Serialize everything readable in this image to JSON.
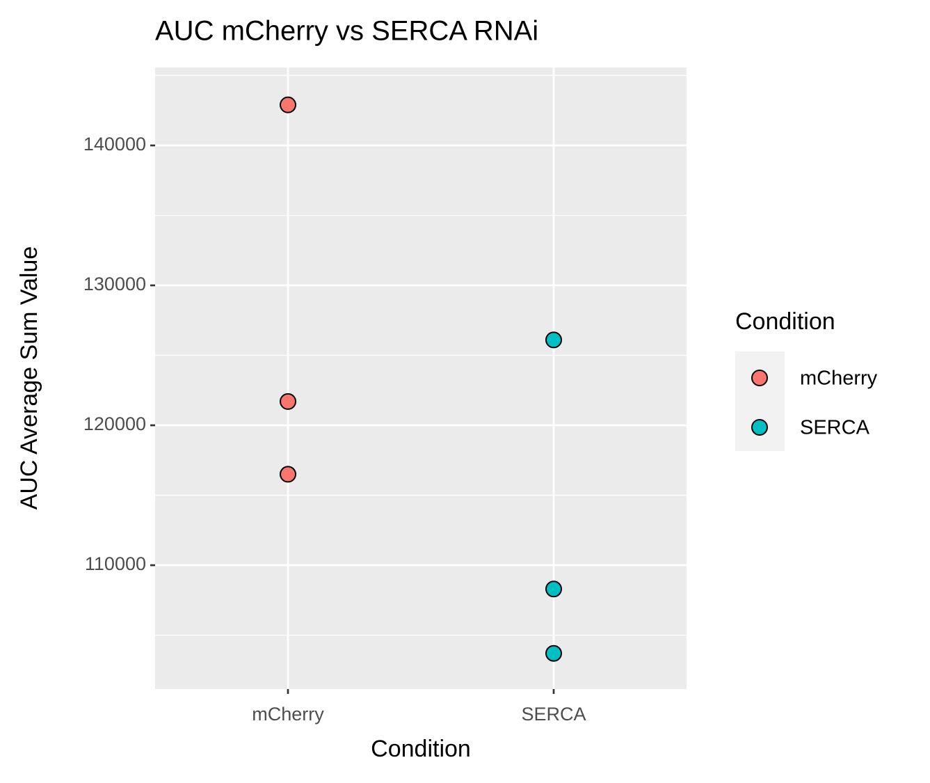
{
  "chart_data": {
    "type": "scatter",
    "title": "AUC mCherry vs SERCA RNAi",
    "x_label": "Condition",
    "y_label": "AUC Average Sum Value",
    "categories": [
      "mCherry",
      "SERCA"
    ],
    "series": [
      {
        "name": "mCherry",
        "color": "#F8766D",
        "x": [
          "mCherry",
          "mCherry",
          "mCherry"
        ],
        "values": [
          142900,
          121700,
          116500
        ]
      },
      {
        "name": "SERCA",
        "color": "#00BFC4",
        "x": [
          "SERCA",
          "SERCA",
          "SERCA"
        ],
        "values": [
          126100,
          108300,
          103700
        ]
      }
    ],
    "ylim": [
      101150,
      145570
    ],
    "yticks": [
      110000,
      120000,
      130000,
      140000
    ],
    "minor_yticks": [
      105000,
      115000,
      125000,
      135000,
      145000
    ],
    "grid": true,
    "legend_title": "Condition",
    "legend": "right"
  }
}
